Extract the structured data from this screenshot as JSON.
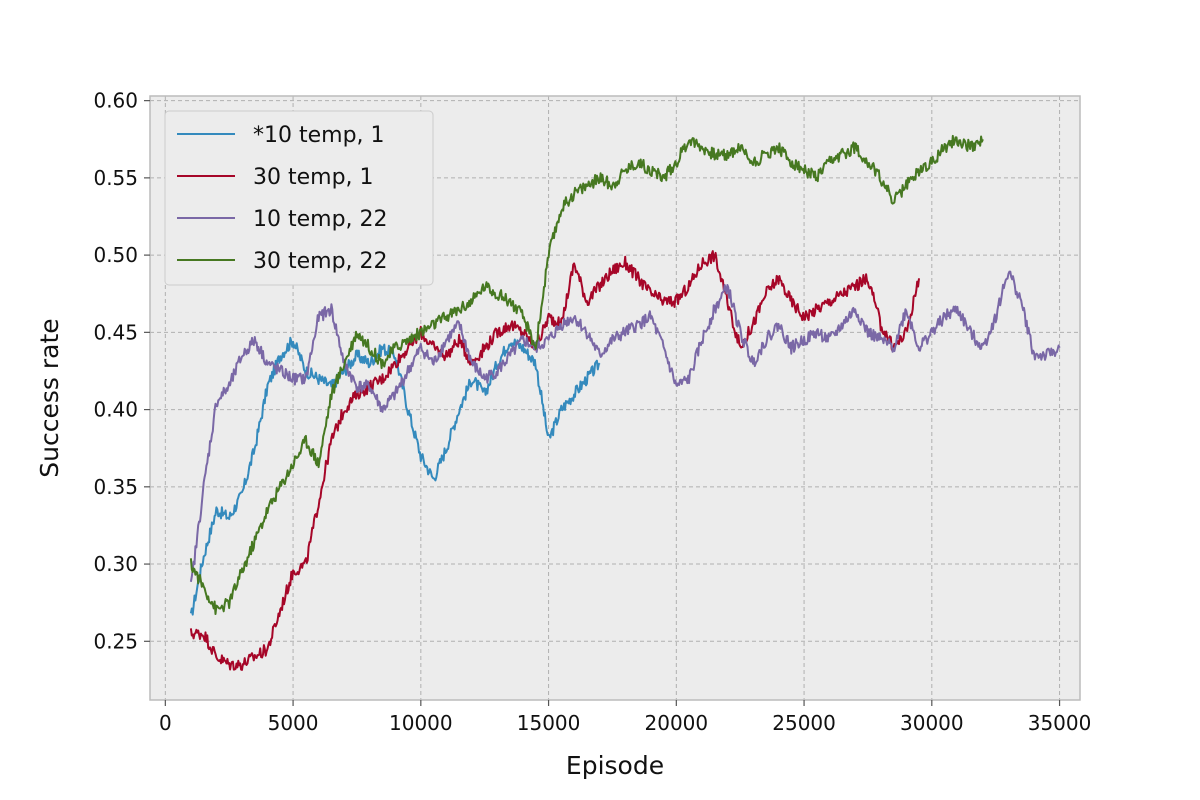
{
  "chart_data": {
    "type": "line",
    "title": "",
    "xlabel": "Episode",
    "ylabel": "Success rate",
    "xlim": [
      -600,
      35800
    ],
    "ylim": [
      0.212,
      0.603
    ],
    "xticks": [
      0,
      5000,
      10000,
      15000,
      20000,
      25000,
      30000,
      35000
    ],
    "xtick_labels": [
      "0",
      "5000",
      "10000",
      "15000",
      "20000",
      "25000",
      "30000",
      "35000"
    ],
    "yticks": [
      0.25,
      0.3,
      0.35,
      0.4,
      0.45,
      0.5,
      0.55,
      0.6
    ],
    "ytick_labels": [
      "0.25",
      "0.30",
      "0.35",
      "0.40",
      "0.45",
      "0.50",
      "0.55",
      "0.60"
    ],
    "grid": true,
    "legend_position": "top-left",
    "background": "#ececec",
    "series": [
      {
        "name": "*10 temp, 1",
        "color": "#348abd",
        "x": [
          1000,
          1500,
          2000,
          2500,
          3000,
          3500,
          4000,
          4500,
          5000,
          5500,
          6000,
          6500,
          7000,
          7500,
          8000,
          8500,
          9000,
          9500,
          10000,
          10500,
          11000,
          11500,
          12000,
          12500,
          13000,
          13500,
          14000,
          14500,
          15000,
          15500,
          16000,
          16500,
          17000
        ],
        "y": [
          0.265,
          0.305,
          0.335,
          0.33,
          0.345,
          0.375,
          0.415,
          0.435,
          0.445,
          0.425,
          0.42,
          0.415,
          0.425,
          0.435,
          0.43,
          0.44,
          0.435,
          0.4,
          0.37,
          0.355,
          0.375,
          0.4,
          0.42,
          0.41,
          0.43,
          0.445,
          0.44,
          0.43,
          0.38,
          0.4,
          0.41,
          0.42,
          0.43
        ]
      },
      {
        "name": "30 temp, 1",
        "color": "#a60628",
        "x": [
          1000,
          1500,
          2000,
          2500,
          3000,
          3500,
          4000,
          4500,
          5000,
          5500,
          6000,
          6500,
          7000,
          7500,
          8000,
          8500,
          9000,
          9500,
          10000,
          10500,
          11000,
          11500,
          12000,
          12500,
          13000,
          13500,
          14000,
          14500,
          15000,
          15500,
          16000,
          16500,
          17000,
          17500,
          18000,
          18500,
          19000,
          19500,
          20000,
          20500,
          21000,
          21500,
          22000,
          22500,
          23000,
          23500,
          24000,
          24500,
          25000,
          25500,
          26000,
          26500,
          27000,
          27500,
          28000,
          28500,
          29000,
          29500
        ],
        "y": [
          0.255,
          0.255,
          0.24,
          0.235,
          0.235,
          0.24,
          0.245,
          0.27,
          0.295,
          0.3,
          0.34,
          0.38,
          0.4,
          0.41,
          0.415,
          0.42,
          0.43,
          0.44,
          0.45,
          0.44,
          0.435,
          0.445,
          0.43,
          0.44,
          0.45,
          0.455,
          0.45,
          0.44,
          0.46,
          0.455,
          0.495,
          0.47,
          0.48,
          0.49,
          0.495,
          0.485,
          0.475,
          0.47,
          0.47,
          0.48,
          0.495,
          0.5,
          0.47,
          0.44,
          0.455,
          0.475,
          0.485,
          0.47,
          0.46,
          0.465,
          0.47,
          0.475,
          0.48,
          0.485,
          0.455,
          0.44,
          0.45,
          0.485
        ]
      },
      {
        "name": "10 temp, 22",
        "color": "#7a68a6",
        "x": [
          1000,
          1500,
          2000,
          2500,
          3000,
          3500,
          4000,
          4500,
          5000,
          5500,
          6000,
          6500,
          7000,
          7500,
          8000,
          8500,
          9000,
          9500,
          10000,
          10500,
          11000,
          11500,
          12000,
          12500,
          13000,
          13500,
          14000,
          14500,
          15000,
          15500,
          16000,
          16500,
          17000,
          17500,
          18000,
          18500,
          19000,
          19500,
          20000,
          20500,
          21000,
          21500,
          22000,
          22500,
          23000,
          23500,
          24000,
          24500,
          25000,
          25500,
          26000,
          26500,
          27000,
          27500,
          28000,
          28500,
          29000,
          29500,
          30000,
          30500,
          31000,
          31500,
          32000,
          32500,
          33000,
          33500,
          34000,
          34500,
          35000
        ],
        "y": [
          0.285,
          0.35,
          0.405,
          0.415,
          0.435,
          0.445,
          0.43,
          0.425,
          0.42,
          0.42,
          0.46,
          0.465,
          0.43,
          0.415,
          0.415,
          0.4,
          0.41,
          0.425,
          0.44,
          0.43,
          0.445,
          0.455,
          0.43,
          0.42,
          0.425,
          0.435,
          0.445,
          0.44,
          0.445,
          0.455,
          0.46,
          0.45,
          0.435,
          0.445,
          0.45,
          0.455,
          0.46,
          0.44,
          0.415,
          0.42,
          0.445,
          0.465,
          0.48,
          0.45,
          0.43,
          0.445,
          0.455,
          0.44,
          0.445,
          0.45,
          0.445,
          0.455,
          0.465,
          0.45,
          0.445,
          0.44,
          0.465,
          0.44,
          0.45,
          0.46,
          0.465,
          0.45,
          0.44,
          0.46,
          0.49,
          0.47,
          0.435,
          0.435,
          0.44
        ]
      },
      {
        "name": "30 temp, 22",
        "color": "#467821",
        "x": [
          1000,
          1500,
          2000,
          2500,
          3000,
          3500,
          4000,
          4500,
          5000,
          5500,
          6000,
          6500,
          7000,
          7500,
          8000,
          8500,
          9000,
          9500,
          10000,
          10500,
          11000,
          11500,
          12000,
          12500,
          13000,
          13500,
          14000,
          14500,
          15000,
          15500,
          16000,
          16500,
          17000,
          17500,
          18000,
          18500,
          19000,
          19500,
          20000,
          20500,
          21000,
          21500,
          22000,
          22500,
          23000,
          23500,
          24000,
          24500,
          25000,
          25500,
          26000,
          26500,
          27000,
          27500,
          28000,
          28500,
          29000,
          29500,
          30000,
          30500,
          31000,
          31500,
          32000
        ],
        "y": [
          0.3,
          0.285,
          0.27,
          0.275,
          0.295,
          0.315,
          0.335,
          0.35,
          0.365,
          0.38,
          0.365,
          0.41,
          0.43,
          0.45,
          0.44,
          0.43,
          0.44,
          0.445,
          0.45,
          0.455,
          0.46,
          0.465,
          0.47,
          0.48,
          0.475,
          0.47,
          0.46,
          0.44,
          0.5,
          0.53,
          0.54,
          0.545,
          0.55,
          0.545,
          0.555,
          0.56,
          0.555,
          0.55,
          0.56,
          0.575,
          0.57,
          0.565,
          0.565,
          0.57,
          0.56,
          0.565,
          0.57,
          0.56,
          0.555,
          0.55,
          0.56,
          0.565,
          0.57,
          0.56,
          0.55,
          0.535,
          0.545,
          0.555,
          0.56,
          0.57,
          0.575,
          0.57,
          0.575
        ]
      }
    ]
  }
}
